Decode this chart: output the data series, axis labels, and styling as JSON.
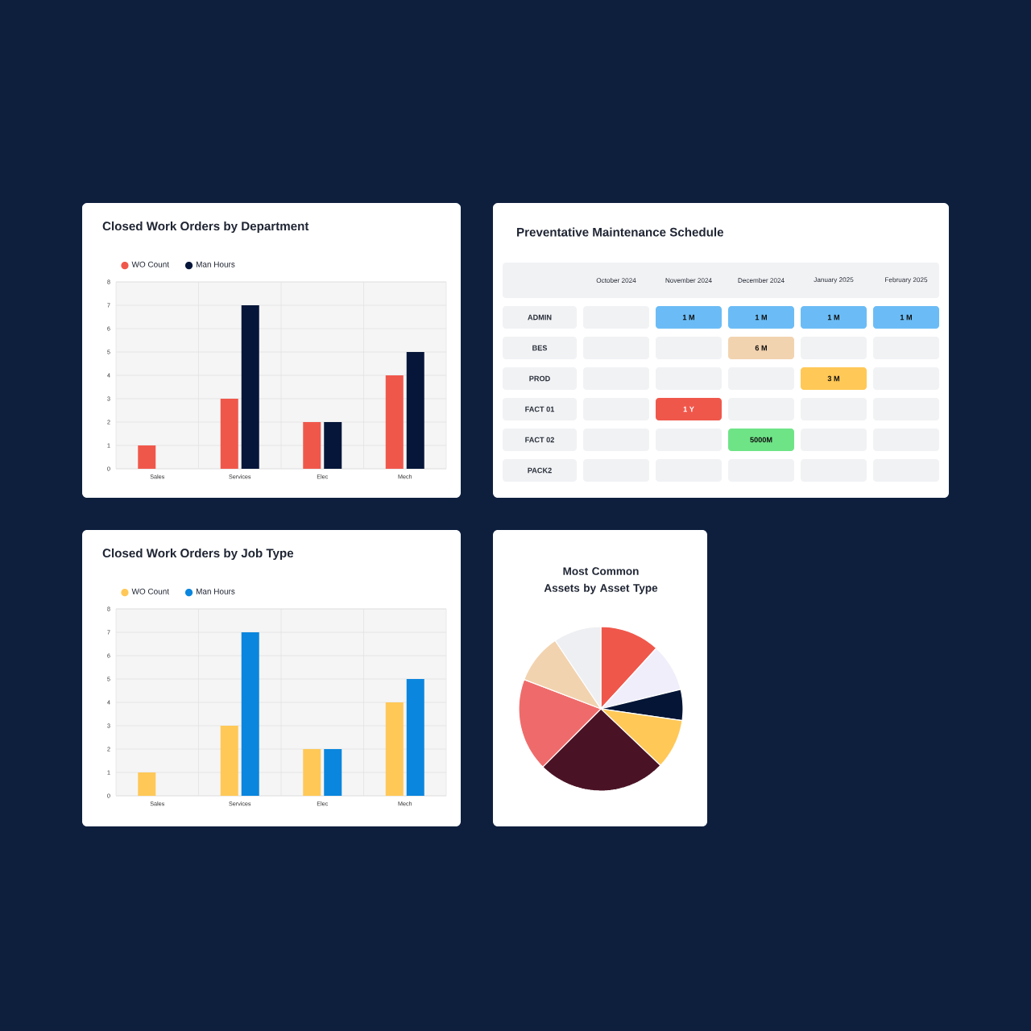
{
  "chart_data": [
    {
      "type": "bar",
      "title": "Closed Work Orders by Department",
      "categories": [
        "Sales",
        "Services",
        "Elec",
        "Mech"
      ],
      "series": [
        {
          "name": "WO Count",
          "color": "#f0574b",
          "values": [
            1,
            3,
            2,
            4
          ]
        },
        {
          "name": "Man Hours",
          "color": "#06163a",
          "values": [
            null,
            7,
            2,
            5
          ]
        }
      ],
      "ylim": [
        0,
        8
      ],
      "yticks": [
        0,
        1,
        2,
        3,
        4,
        5,
        6,
        7,
        8
      ],
      "grid": true,
      "legend": "top left"
    },
    {
      "type": "other",
      "title": "Preventative Maintenance Schedule",
      "categories": [
        "October 2024",
        "November 2024",
        "December 2024",
        "January 2025",
        "February 2025"
      ],
      "y_categories": [
        "ADMIN",
        "BES",
        "PROD",
        "FACT 01",
        "FACT 02",
        "PACK2"
      ],
      "cell_labels": [
        [
          null,
          "1 M",
          "1 M",
          "1 M",
          "1 M"
        ],
        [
          null,
          null,
          "6 M",
          null,
          null
        ],
        [
          null,
          null,
          null,
          "3 M",
          null
        ],
        [
          null,
          "1 Y",
          null,
          null,
          null
        ],
        [
          null,
          null,
          "5000M",
          null,
          null
        ],
        [
          null,
          null,
          null,
          null,
          null
        ]
      ],
      "colors": [
        [
          null,
          "#6bbcf6",
          "#6bbcf6",
          "#6bbcf6",
          "#6bbcf6"
        ],
        [
          null,
          null,
          "#f2d3b0",
          null,
          null
        ],
        [
          null,
          null,
          null,
          "#ffc857",
          null
        ],
        [
          null,
          "#f0574b",
          null,
          null,
          null
        ],
        [
          null,
          null,
          "#6fe487",
          null,
          null
        ],
        [
          null,
          null,
          null,
          null,
          null
        ]
      ]
    },
    {
      "type": "bar",
      "title": "Closed Work Orders by Job Type",
      "categories": [
        "Sales",
        "Services",
        "Elec",
        "Mech"
      ],
      "series": [
        {
          "name": "WO Count",
          "color": "#ffc857",
          "values": [
            1,
            3,
            2,
            4
          ]
        },
        {
          "name": "Man Hours",
          "color": "#0a86de",
          "values": [
            null,
            7,
            2,
            5
          ]
        }
      ],
      "ylim": [
        0,
        8
      ],
      "yticks": [
        0,
        1,
        2,
        3,
        4,
        5,
        6,
        7,
        8
      ],
      "grid": true,
      "legend": "top left"
    },
    {
      "type": "pie",
      "title": "Most Common Assets by Asset Type",
      "categories": [
        null,
        null,
        null,
        null,
        null,
        null,
        null,
        null
      ],
      "values": [
        11.8,
        9.4,
        6.1,
        9.8,
        25.4,
        18.3,
        9.8,
        9.4
      ],
      "colors": [
        "#f0574b",
        "#f1eefb",
        "#041536",
        "#ffc857",
        "#4a1325",
        "#ef6b6b",
        "#f2d3b0",
        "#eeeff2"
      ]
    }
  ]
}
